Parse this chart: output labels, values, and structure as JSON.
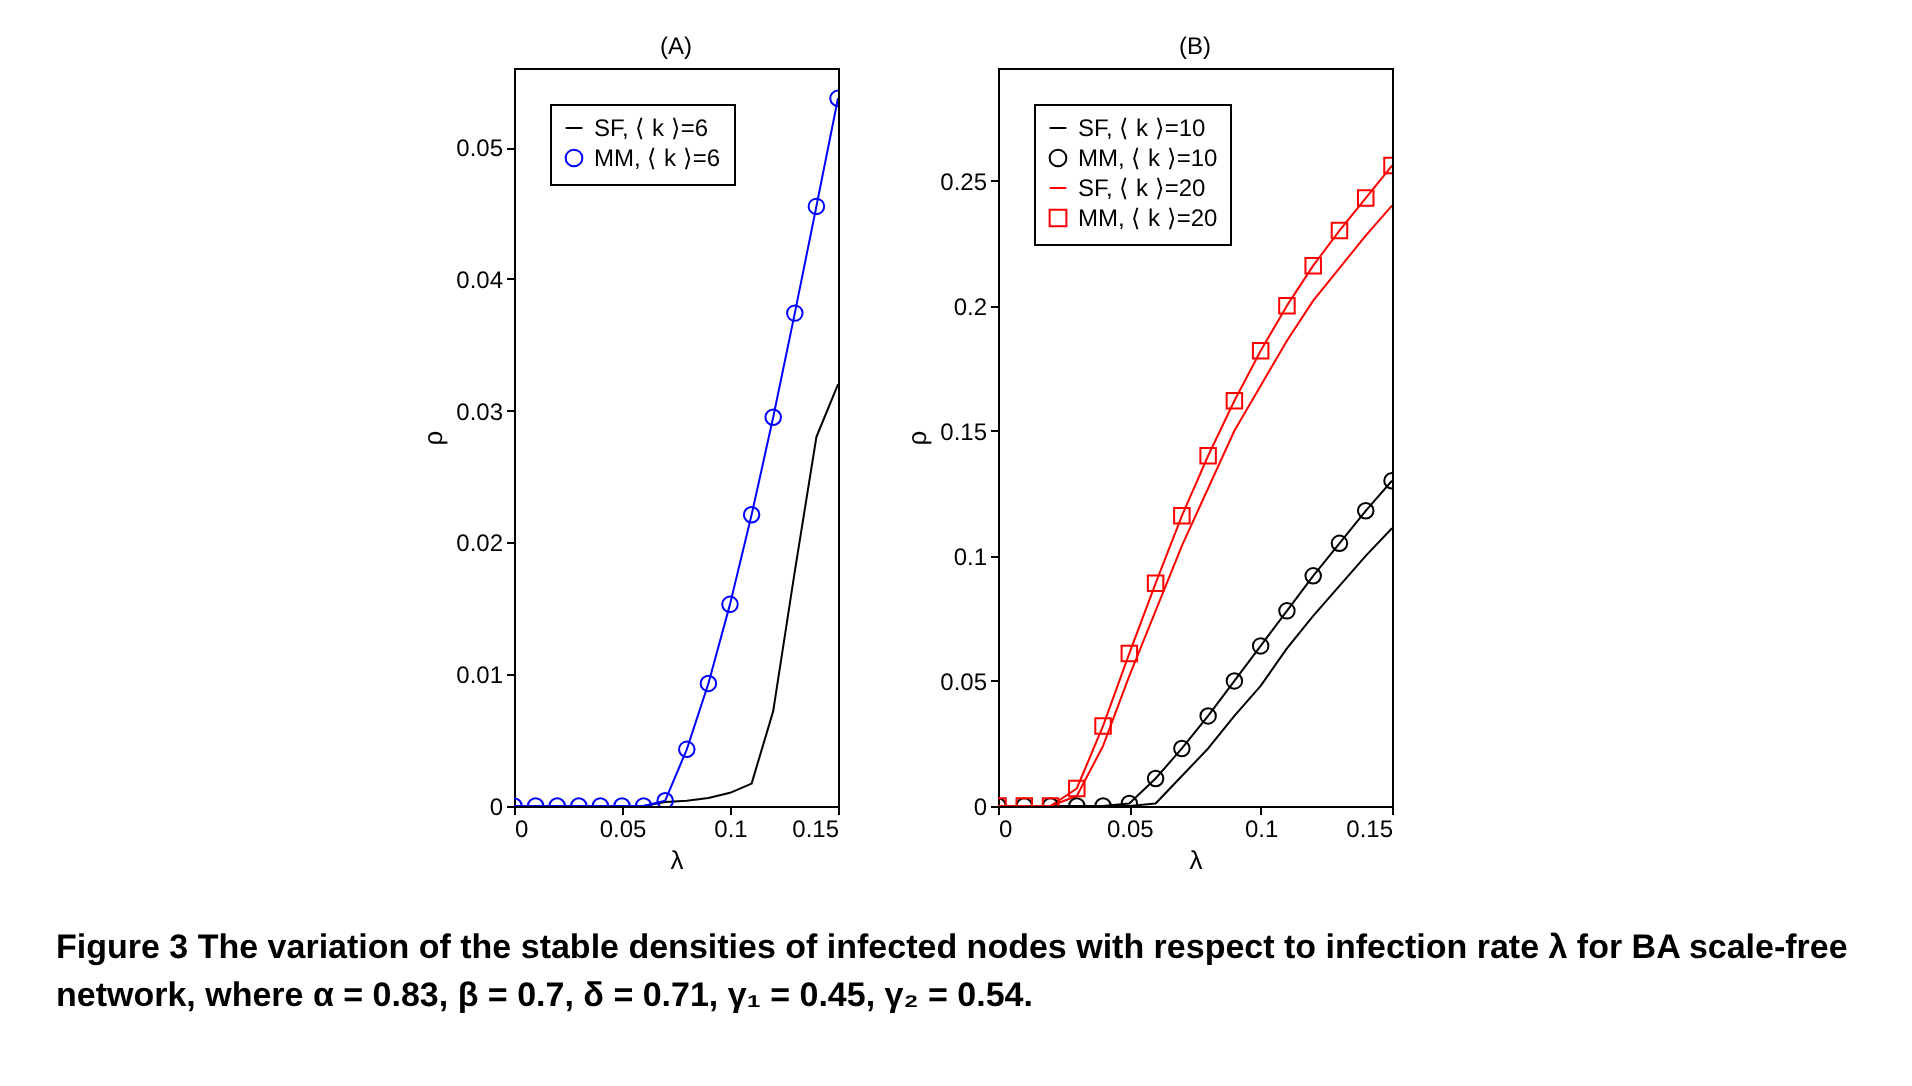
{
  "chart_data": [
    {
      "type": "line",
      "title": "(A)",
      "xlabel": "λ",
      "ylabel": "ρ",
      "x": [
        0,
        0.01,
        0.02,
        0.03,
        0.04,
        0.05,
        0.06,
        0.07,
        0.08,
        0.09,
        0.1,
        0.11,
        0.12,
        0.13,
        0.14,
        0.15
      ],
      "series": [
        {
          "name": "SF, ⟨ k ⟩=6",
          "color": "#000000",
          "values": [
            0,
            0,
            0,
            0,
            0,
            0,
            0,
            0.0003,
            0.0004,
            0.0006,
            0.001,
            0.0017,
            0.0072,
            0.0178,
            0.028,
            0.032
          ]
        },
        {
          "name": "MM, ⟨ k ⟩=6",
          "color": "#0000ff",
          "marker": "circle",
          "values": [
            0,
            0,
            0,
            0,
            0,
            0,
            0,
            0.0004,
            0.0043,
            0.0093,
            0.0153,
            0.0221,
            0.0295,
            0.0374,
            0.0455,
            0.0537
          ]
        }
      ],
      "xlim": [
        0,
        0.15
      ],
      "xticks": [
        0,
        0.05,
        0.1,
        0.15
      ],
      "ylim": [
        0,
        0.056
      ],
      "yticks": [
        0,
        0.01,
        0.02,
        0.03,
        0.04,
        0.05
      ],
      "legend": "top left",
      "annotations": [
        "Figure 3  The variation of the stable densities of infected nodes with respect to infection rate λ for BA scale-free network, where α = 0.83, β = 0.7, δ = 0.71, γ₁ = 0.45, γ₂ = 0.54."
      ]
    },
    {
      "type": "line",
      "title": "(B)",
      "xlabel": "λ",
      "ylabel": "ρ",
      "x": [
        0,
        0.01,
        0.02,
        0.03,
        0.04,
        0.05,
        0.06,
        0.07,
        0.08,
        0.09,
        0.1,
        0.11,
        0.12,
        0.13,
        0.14,
        0.15
      ],
      "series": [
        {
          "name": "SF, ⟨ k ⟩=10",
          "color": "#000000",
          "values": [
            0,
            0,
            0,
            0,
            0,
            0,
            0.001,
            0.012,
            0.023,
            0.036,
            0.048,
            0.063,
            0.076,
            0.088,
            0.1,
            0.111
          ]
        },
        {
          "name": "MM, ⟨ k ⟩=10",
          "color": "#000000",
          "marker": "circle",
          "values": [
            0,
            0,
            0,
            0,
            0,
            0.001,
            0.011,
            0.023,
            0.036,
            0.05,
            0.064,
            0.078,
            0.092,
            0.105,
            0.118,
            0.13
          ]
        },
        {
          "name": "SF, ⟨ k ⟩=20",
          "color": "#ff0000",
          "values": [
            0,
            0,
            0,
            0.004,
            0.024,
            0.052,
            0.078,
            0.104,
            0.127,
            0.15,
            0.168,
            0.186,
            0.202,
            0.215,
            0.228,
            0.24
          ]
        },
        {
          "name": "MM, ⟨ k ⟩=20",
          "color": "#ff0000",
          "marker": "square",
          "values": [
            0,
            0,
            0,
            0.007,
            0.032,
            0.061,
            0.089,
            0.116,
            0.14,
            0.162,
            0.182,
            0.2,
            0.216,
            0.23,
            0.243,
            0.256
          ]
        }
      ],
      "xlim": [
        0,
        0.15
      ],
      "xticks": [
        0,
        0.05,
        0.1,
        0.15
      ],
      "ylim": [
        0,
        0.295
      ],
      "yticks": [
        0,
        0.05,
        0.1,
        0.15,
        0.2,
        0.25
      ],
      "legend": "top left"
    }
  ]
}
